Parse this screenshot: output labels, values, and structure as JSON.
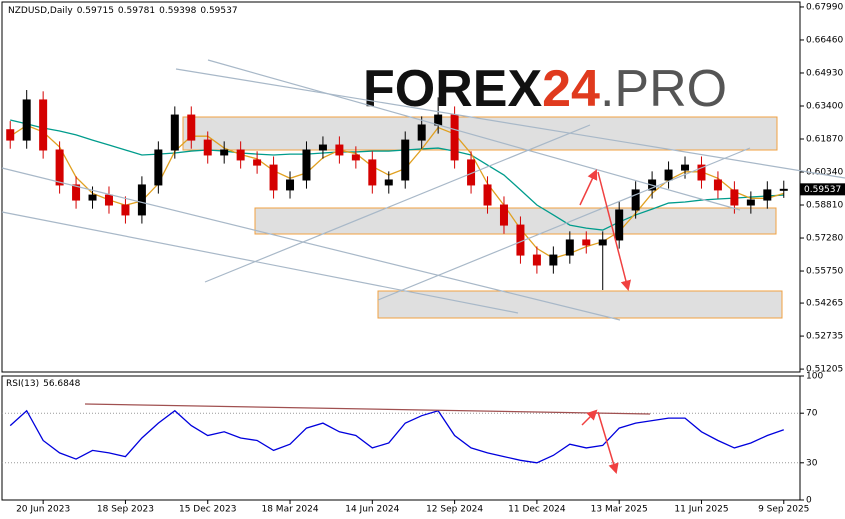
{
  "chart_data": [
    {
      "type": "candlestick",
      "title": "NZDUSD,Daily",
      "header_ohlc": [
        0.59715,
        0.59781,
        0.59398,
        0.59537
      ],
      "watermark": [
        "FOREX",
        "24",
        ".PRO"
      ],
      "categories": [
        null,
        null,
        "20 Jun 2023",
        null,
        null,
        null,
        null,
        "18 Sep 2023",
        null,
        null,
        null,
        null,
        "15 Dec 2023",
        null,
        null,
        null,
        null,
        "18 Mar 2024",
        null,
        null,
        null,
        null,
        "14 Jun 2024",
        null,
        null,
        null,
        null,
        "12 Sep 2024",
        null,
        null,
        null,
        null,
        "11 Dec 2024",
        null,
        null,
        null,
        null,
        "13 Mar 2025",
        null,
        null,
        null,
        null,
        "11 Jun 2025",
        null,
        null,
        null,
        null,
        "9 Sep 2025"
      ],
      "open": [
        0.623,
        0.6182,
        0.6368,
        0.6136,
        0.5974,
        0.5904,
        0.5927,
        0.5881,
        0.5835,
        0.5974,
        0.6136,
        0.6298,
        0.6182,
        0.6113,
        0.6136,
        0.609,
        0.6066,
        0.5951,
        0.5997,
        0.6136,
        0.6159,
        0.6113,
        0.609,
        0.5974,
        0.5997,
        0.6182,
        0.6252,
        0.6298,
        0.609,
        0.5974,
        0.5881,
        0.5788,
        0.5649,
        0.5603,
        0.5649,
        0.5719,
        0.5696,
        0.5719,
        0.5858,
        0.5951,
        0.5997,
        0.6043,
        0.6066,
        0.5997,
        0.5951,
        0.5881,
        0.5904,
        0.5951
      ],
      "high": [
        0.627,
        0.6414,
        0.6408,
        0.6176,
        0.6014,
        0.5967,
        0.5967,
        0.5921,
        0.6014,
        0.6176,
        0.6338,
        0.6338,
        0.6222,
        0.6176,
        0.6176,
        0.613,
        0.6106,
        0.6037,
        0.6176,
        0.6199,
        0.6199,
        0.6153,
        0.613,
        0.6037,
        0.6222,
        0.6292,
        0.638,
        0.6338,
        0.613,
        0.6014,
        0.5921,
        0.5828,
        0.5689,
        0.5689,
        0.5759,
        0.5759,
        0.5759,
        0.5898,
        0.5991,
        0.6037,
        0.6083,
        0.6106,
        0.6106,
        0.6037,
        0.5991,
        0.5944,
        0.5991,
        0.5994
      ],
      "low": [
        0.6142,
        0.6142,
        0.6096,
        0.5934,
        0.5864,
        0.5864,
        0.5841,
        0.5795,
        0.5795,
        0.5934,
        0.6096,
        0.6142,
        0.6073,
        0.6073,
        0.605,
        0.6026,
        0.5911,
        0.5911,
        0.5957,
        0.6096,
        0.6073,
        0.605,
        0.5934,
        0.5934,
        0.5957,
        0.6142,
        0.6212,
        0.605,
        0.5934,
        0.5841,
        0.5748,
        0.5609,
        0.5563,
        0.5563,
        0.5609,
        0.5656,
        0.5487,
        0.5679,
        0.5818,
        0.5911,
        0.5957,
        0.6003,
        0.5957,
        0.5911,
        0.5841,
        0.5841,
        0.5864,
        0.5914
      ],
      "close": [
        0.6182,
        0.6368,
        0.6136,
        0.5974,
        0.5904,
        0.5927,
        0.5881,
        0.5835,
        0.5974,
        0.6136,
        0.6298,
        0.6182,
        0.6113,
        0.6136,
        0.609,
        0.6066,
        0.5951,
        0.5997,
        0.6136,
        0.6159,
        0.6113,
        0.609,
        0.5974,
        0.5997,
        0.6182,
        0.6252,
        0.6298,
        0.609,
        0.5974,
        0.5881,
        0.5788,
        0.5649,
        0.5603,
        0.5649,
        0.5719,
        0.5696,
        0.5719,
        0.5858,
        0.5951,
        0.5997,
        0.6043,
        0.6066,
        0.5997,
        0.5951,
        0.5881,
        0.5904,
        0.5951,
        0.59537
      ],
      "up_color": "#000000",
      "down_color": "#d40000",
      "series": [
        {
          "color": "#009c8c",
          "values": [
            0.6275,
            0.6257,
            0.6238,
            0.6224,
            0.6206,
            0.6182,
            0.6159,
            0.6136,
            0.6113,
            0.6117,
            0.6122,
            0.6131,
            0.6136,
            0.6131,
            0.6122,
            0.6117,
            0.6113,
            0.6117,
            0.6117,
            0.6122,
            0.6127,
            0.6127,
            0.6131,
            0.6131,
            0.6136,
            0.6141,
            0.6145,
            0.6131,
            0.6113,
            0.6066,
            0.602,
            0.5951,
            0.5881,
            0.5835,
            0.5788,
            0.5774,
            0.5765,
            0.5802,
            0.5835,
            0.5862,
            0.589,
            0.5895,
            0.5904,
            0.5909,
            0.5913,
            0.5918,
            0.5923,
            0.5927
          ]
        },
        {
          "color": "#e0a020",
          "values": [
            0.62,
            0.625,
            0.622,
            0.615,
            0.601,
            0.5935,
            0.5905,
            0.588,
            0.59,
            0.598,
            0.613,
            0.62,
            0.62,
            0.6145,
            0.6115,
            0.6095,
            0.604,
            0.6005,
            0.603,
            0.61,
            0.6135,
            0.612,
            0.606,
            0.602,
            0.605,
            0.614,
            0.624,
            0.621,
            0.612,
            0.598,
            0.588,
            0.577,
            0.568,
            0.5634,
            0.5657,
            0.5688,
            0.5711,
            0.5758,
            0.5843,
            0.5935,
            0.5997,
            0.6035,
            0.6035,
            0.6005,
            0.5943,
            0.5912,
            0.5912,
            0.5935
          ]
        }
      ],
      "ylim": [
        0.5107,
        0.6822
      ],
      "yticks": [
        {
          "value": 0.6799,
          "label": "0.67990"
        },
        {
          "value": 0.6646,
          "label": "0.66460"
        },
        {
          "value": 0.6493,
          "label": "0.64930"
        },
        {
          "value": 0.634,
          "label": "0.63400"
        },
        {
          "value": 0.6187,
          "label": "0.61870"
        },
        {
          "value": 0.6034,
          "label": "0.60340"
        },
        {
          "value": 0.5881,
          "label": "0.58810"
        },
        {
          "value": 0.5728,
          "label": "0.57280"
        },
        {
          "value": 0.5575,
          "label": "0.55750"
        },
        0.54265,
        0.52735,
        0.51205
      ]
    },
    {
      "type": "line",
      "title": "RSI(13)",
      "color": "#0000dd",
      "values": [
        60,
        72,
        48,
        38,
        33,
        40,
        38,
        35,
        50,
        62,
        72,
        60,
        52,
        55,
        50,
        48,
        40,
        45,
        58,
        62,
        55,
        52,
        42,
        46,
        62,
        68,
        72,
        52,
        42,
        38,
        35,
        32,
        30,
        36,
        45,
        42,
        44,
        58,
        62,
        64,
        66,
        66,
        55,
        48,
        42,
        46,
        52,
        56.6848
      ],
      "ylim": [
        0,
        100
      ],
      "yticks": [
        100,
        70,
        30,
        0
      ]
    }
  ]
}
